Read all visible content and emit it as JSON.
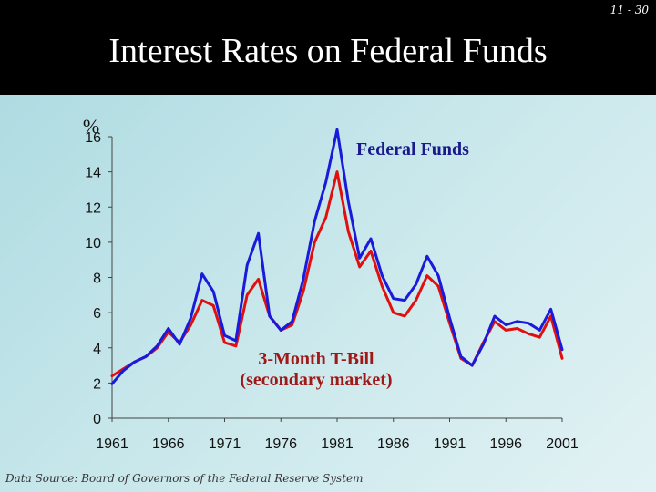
{
  "slide": {
    "number": "11 - 30",
    "title": "Interest Rates on Federal Funds"
  },
  "source": "Data Source: Board of Governors of the Federal Reserve System",
  "colors": {
    "fed_funds": "#1a1adb",
    "tbill": "#e01010",
    "title_band": "#000000"
  },
  "chart_data": {
    "type": "line",
    "title": "Interest Rates on Federal Funds",
    "ylabel": "%",
    "xlabel": "",
    "ylim": [
      0,
      16
    ],
    "xlim": [
      1961,
      2001
    ],
    "yticks": [
      "0",
      "2",
      "4",
      "6",
      "8",
      "10",
      "12",
      "14",
      "16"
    ],
    "xticks": [
      "1961",
      "1966",
      "1971",
      "1976",
      "1981",
      "1986",
      "1991",
      "1996",
      "2001"
    ],
    "annotations": {
      "fed_funds": "Federal Funds",
      "tbill_line1": "3-Month T-Bill",
      "tbill_line2": "(secondary market)"
    },
    "x": [
      1961,
      1962,
      1963,
      1964,
      1965,
      1966,
      1967,
      1968,
      1969,
      1970,
      1971,
      1972,
      1973,
      1974,
      1975,
      1976,
      1977,
      1978,
      1979,
      1980,
      1981,
      1982,
      1983,
      1984,
      1985,
      1986,
      1987,
      1988,
      1989,
      1990,
      1991,
      1992,
      1993,
      1994,
      1995,
      1996,
      1997,
      1998,
      1999,
      2000,
      2001
    ],
    "series": [
      {
        "name": "Federal Funds",
        "values": [
          1.95,
          2.7,
          3.2,
          3.5,
          4.1,
          5.1,
          4.2,
          5.7,
          8.2,
          7.2,
          4.7,
          4.4,
          8.7,
          10.5,
          5.8,
          5.0,
          5.5,
          7.9,
          11.2,
          13.4,
          16.4,
          12.3,
          9.1,
          10.2,
          8.1,
          6.8,
          6.7,
          7.6,
          9.2,
          8.1,
          5.7,
          3.5,
          3.0,
          4.2,
          5.8,
          5.3,
          5.5,
          5.4,
          5.0,
          6.2,
          3.9
        ]
      },
      {
        "name": "3-Month T-Bill",
        "values": [
          2.4,
          2.8,
          3.2,
          3.5,
          4.0,
          4.9,
          4.3,
          5.3,
          6.7,
          6.4,
          4.3,
          4.1,
          7.0,
          7.9,
          5.8,
          5.0,
          5.3,
          7.2,
          10.0,
          11.4,
          14.0,
          10.6,
          8.6,
          9.5,
          7.5,
          6.0,
          5.8,
          6.7,
          8.1,
          7.5,
          5.4,
          3.4,
          3.0,
          4.3,
          5.5,
          5.0,
          5.1,
          4.8,
          4.6,
          5.8,
          3.4
        ]
      }
    ]
  }
}
